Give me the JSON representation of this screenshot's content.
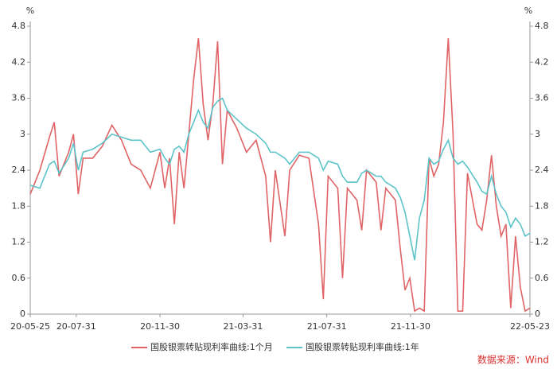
{
  "chart_data": {
    "type": "line",
    "y_label": "%",
    "y2_label": "%",
    "source": "数据来源：Wind",
    "x": [
      "20-05-25",
      "20-06-08",
      "20-06-22",
      "20-06-29",
      "20-07-06",
      "20-07-20",
      "20-07-27",
      "20-08-03",
      "20-08-10",
      "20-08-24",
      "20-09-07",
      "20-09-21",
      "20-10-05",
      "20-10-19",
      "20-11-02",
      "20-11-16",
      "20-11-30",
      "20-12-07",
      "20-12-14",
      "20-12-21",
      "20-12-28",
      "21-01-04",
      "21-01-11",
      "21-01-18",
      "21-01-25",
      "21-02-01",
      "21-02-08",
      "21-02-15",
      "21-02-22",
      "21-03-01",
      "21-03-08",
      "21-03-22",
      "21-04-05",
      "21-04-19",
      "21-05-03",
      "21-05-10",
      "21-05-17",
      "21-05-31",
      "21-06-07",
      "21-06-21",
      "21-07-05",
      "21-07-19",
      "21-07-26",
      "21-08-02",
      "21-08-16",
      "21-08-23",
      "21-08-30",
      "21-09-13",
      "21-09-20",
      "21-09-27",
      "21-10-11",
      "21-10-18",
      "21-10-25",
      "21-11-08",
      "21-11-15",
      "21-11-22",
      "21-11-29",
      "21-12-06",
      "21-12-13",
      "21-12-20",
      "21-12-27",
      "22-01-03",
      "22-01-10",
      "22-01-17",
      "22-01-24",
      "22-01-31",
      "22-02-07",
      "22-02-14",
      "22-02-21",
      "22-03-07",
      "22-03-14",
      "22-03-21",
      "22-03-28",
      "22-04-04",
      "22-04-11",
      "22-04-18",
      "22-04-25",
      "22-05-02",
      "22-05-09",
      "22-05-16",
      "22-05-23"
    ],
    "series": [
      {
        "name": "国股银票转贴现利率曲线:1个月",
        "color": "#e06466",
        "values": [
          2.0,
          2.4,
          2.95,
          3.2,
          2.3,
          2.7,
          3.0,
          2.0,
          2.6,
          2.6,
          2.8,
          3.15,
          2.9,
          2.5,
          2.4,
          2.1,
          2.7,
          2.1,
          2.6,
          1.5,
          2.7,
          2.1,
          3.0,
          3.9,
          4.6,
          3.5,
          2.9,
          3.5,
          4.55,
          2.5,
          3.4,
          3.1,
          2.7,
          2.9,
          2.3,
          1.2,
          2.4,
          1.3,
          2.4,
          2.65,
          2.6,
          1.5,
          0.25,
          2.3,
          2.1,
          0.6,
          2.1,
          1.9,
          1.4,
          2.4,
          2.2,
          1.4,
          2.1,
          1.9,
          1.1,
          0.4,
          0.6,
          0.05,
          0.1,
          0.05,
          2.6,
          2.3,
          2.5,
          3.2,
          4.6,
          3.0,
          0.05,
          0.05,
          2.35,
          1.5,
          1.4,
          1.9,
          2.65,
          1.8,
          1.3,
          1.5,
          0.1,
          1.3,
          0.45,
          0.05,
          0.1
        ]
      },
      {
        "name": "国股银票转贴现利率曲线:1年",
        "color": "#5cc3c8",
        "values": [
          2.15,
          2.1,
          2.5,
          2.55,
          2.35,
          2.6,
          2.85,
          2.4,
          2.7,
          2.75,
          2.85,
          3.0,
          2.95,
          2.9,
          2.9,
          2.7,
          2.75,
          2.6,
          2.5,
          2.75,
          2.8,
          2.7,
          3.0,
          3.2,
          3.4,
          3.2,
          3.1,
          3.45,
          3.55,
          3.6,
          3.4,
          3.25,
          3.1,
          3.0,
          2.85,
          2.7,
          2.7,
          2.6,
          2.5,
          2.7,
          2.7,
          2.6,
          2.4,
          2.55,
          2.5,
          2.3,
          2.2,
          2.2,
          2.35,
          2.4,
          2.3,
          2.3,
          2.2,
          2.1,
          1.95,
          1.7,
          1.3,
          0.9,
          1.6,
          1.9,
          2.6,
          2.5,
          2.55,
          2.75,
          2.9,
          2.6,
          2.5,
          2.55,
          2.45,
          2.2,
          2.05,
          2.0,
          2.3,
          2.0,
          1.8,
          1.7,
          1.45,
          1.6,
          1.5,
          1.3,
          1.35
        ]
      }
    ],
    "xlim": [
      "20-05-25",
      "22-05-23"
    ],
    "xticks": [
      "20-05-25",
      "20-07-31",
      "20-11-30",
      "21-03-31",
      "21-07-31",
      "21-11-30",
      "22-05-23"
    ],
    "ylim": [
      0,
      4.8
    ],
    "yticks": [
      0,
      0.6,
      1.2,
      1.8,
      2.4,
      3,
      3.6,
      4.2,
      4.8
    ],
    "y2lim": [
      0,
      4.8
    ],
    "y2ticks": [
      0,
      0.6,
      1.2,
      1.8,
      2.4,
      3,
      3.6,
      4.2,
      4.8
    ],
    "grid": false
  }
}
